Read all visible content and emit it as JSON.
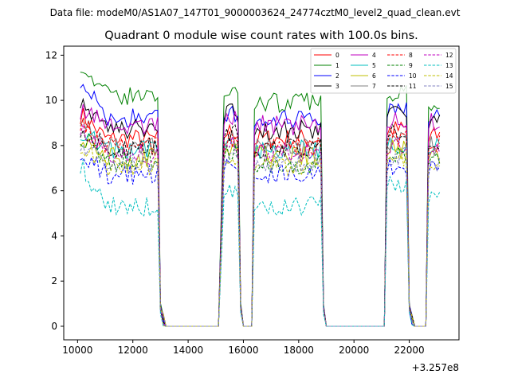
{
  "figure": {
    "suptitle": "Data file: modeM0/AS1A07_147T01_9000003624_24774cztM0_level2_quad_clean.evt"
  },
  "chart_data": {
    "type": "line",
    "title": "Quadrant 0 module wise count rates with 100.0s bins.",
    "xlabel": "",
    "ylabel": "",
    "x_offset_label": "+3.257e8",
    "xlim": [
      9500,
      23800
    ],
    "ylim": [
      -0.6,
      12.4
    ],
    "x_ticks": [
      10000,
      12000,
      14000,
      16000,
      18000,
      20000,
      22000
    ],
    "x_tick_labels": [
      "10000",
      "12000",
      "14000",
      "16000",
      "18000",
      "20000",
      "22000"
    ],
    "y_ticks": [
      0,
      2,
      4,
      6,
      8,
      10,
      12
    ],
    "y_tick_labels": [
      "0",
      "2",
      "4",
      "6",
      "8",
      "10",
      "12"
    ],
    "grid": false,
    "legend_placement": "top-right",
    "legend_columns": 4,
    "bin_size_s": 100,
    "segments": [
      {
        "start": 10100,
        "end": 12900,
        "dropout": [
          13000,
          13100
        ]
      },
      {
        "start": 15300,
        "end": 15800,
        "dropout": [
          15900,
          15900
        ]
      },
      {
        "start": 16400,
        "end": 18800,
        "dropout": [
          18900,
          18900
        ]
      },
      {
        "start": 21200,
        "end": 21900,
        "dropout": [
          22000,
          22100
        ]
      },
      {
        "start": 22700,
        "end": 23100,
        "dropout": []
      }
    ],
    "zero_ranges": [
      [
        13200,
        15100
      ],
      [
        16000,
        16300
      ],
      [
        19000,
        21100
      ],
      [
        22200,
        22600
      ]
    ],
    "series": [
      {
        "name": "0",
        "color": "#ff0000",
        "dash": "solid",
        "seg_means": [
          8.3,
          8.6,
          8.3,
          8.7,
          8.4
        ],
        "start_val": 9.4
      },
      {
        "name": "1",
        "color": "#008000",
        "dash": "solid",
        "seg_means": [
          10.2,
          10.5,
          9.9,
          10.4,
          10.0
        ],
        "start_val": 11.7
      },
      {
        "name": "2",
        "color": "#0000ff",
        "dash": "solid",
        "seg_means": [
          9.2,
          9.5,
          9.1,
          9.5,
          9.3
        ],
        "start_val": 11.0
      },
      {
        "name": "3",
        "color": "#000000",
        "dash": "solid",
        "seg_means": [
          8.7,
          9.4,
          8.7,
          9.6,
          9.0
        ],
        "start_val": 10.1
      },
      {
        "name": "4",
        "color": "#bf00bf",
        "dash": "solid",
        "seg_means": [
          8.9,
          9.2,
          8.9,
          9.1,
          9.0
        ],
        "start_val": 9.6
      },
      {
        "name": "5",
        "color": "#00bfbf",
        "dash": "solid",
        "seg_means": [
          7.8,
          8.1,
          7.8,
          8.1,
          7.9
        ],
        "start_val": 8.7
      },
      {
        "name": "6",
        "color": "#bfbf00",
        "dash": "solid",
        "seg_means": [
          7.5,
          7.9,
          7.6,
          7.8,
          7.6
        ],
        "start_val": 8.4
      },
      {
        "name": "7",
        "color": "#808080",
        "dash": "solid",
        "seg_means": [
          7.9,
          8.3,
          7.9,
          8.2,
          8.0
        ],
        "start_val": 9.3
      },
      {
        "name": "8",
        "color": "#ff0000",
        "dash": "dashed",
        "seg_means": [
          8.0,
          8.3,
          8.0,
          8.3,
          8.1
        ],
        "start_val": 9.1
      },
      {
        "name": "9",
        "color": "#008000",
        "dash": "dashed",
        "seg_means": [
          7.3,
          7.6,
          7.2,
          7.6,
          7.4
        ],
        "start_val": 8.5
      },
      {
        "name": "10",
        "color": "#0000ff",
        "dash": "dashed",
        "seg_means": [
          6.7,
          7.1,
          6.8,
          7.0,
          6.9
        ],
        "start_val": 7.8
      },
      {
        "name": "11",
        "color": "#000000",
        "dash": "dashed",
        "seg_means": [
          7.9,
          8.6,
          7.9,
          8.5,
          8.2
        ],
        "start_val": 8.8
      },
      {
        "name": "12",
        "color": "#bf00bf",
        "dash": "dashed",
        "seg_means": [
          7.6,
          8.0,
          7.7,
          7.9,
          7.7
        ],
        "start_val": 8.9
      },
      {
        "name": "13",
        "color": "#00bfbf",
        "dash": "dashed",
        "seg_means": [
          5.3,
          6.0,
          5.3,
          6.3,
          5.6
        ],
        "start_val": 7.2
      },
      {
        "name": "14",
        "color": "#bfbf00",
        "dash": "dashed",
        "seg_means": [
          7.1,
          7.5,
          7.1,
          7.5,
          7.3
        ],
        "start_val": 8.1
      },
      {
        "name": "15",
        "color": "#8080c0",
        "dash": "dashed",
        "seg_means": [
          7.2,
          7.6,
          7.2,
          7.5,
          7.3
        ],
        "start_val": 8.2
      }
    ]
  }
}
